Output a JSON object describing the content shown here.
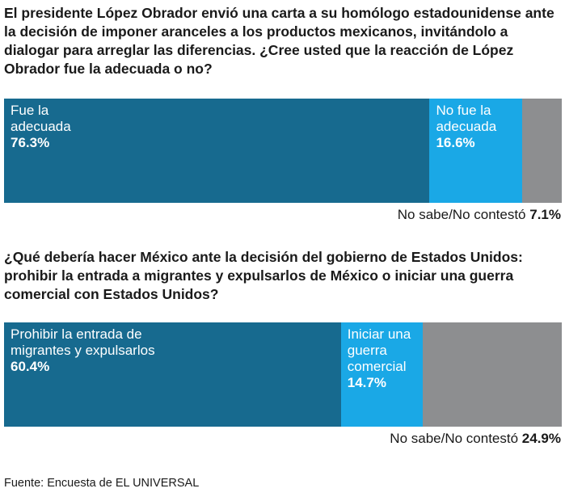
{
  "chart_data": [
    {
      "type": "stacked_bar",
      "title": "El presidente López Obrador envió una carta a su homólogo estadounidense ante la decisión de imponer aranceles a los productos mexicanos, invitándolo a dialogar para arreglar las diferencias. ¿Cree usted que la reacción de López Obrador fue la adecuada o no?",
      "categories": [
        "Fue la adecuada",
        "No fue la adecuada",
        "No sabe/No contestó"
      ],
      "values": [
        76.3,
        16.6,
        7.1
      ],
      "value_labels": [
        "76.3%",
        "16.6%",
        "7.1%"
      ],
      "colors": [
        "#176a8f",
        "#1aa8e6",
        "#8d8e90"
      ]
    },
    {
      "type": "stacked_bar",
      "title": "¿Qué debería hacer México ante la decisión del gobierno de Estados Unidos: prohibir la entrada a migrantes y expulsarlos de México o iniciar una guerra comercial con Estados Unidos?",
      "categories": [
        "Prohibir la entrada de migrantes y expulsarlos",
        "Iniciar una guerra comercial",
        "No sabe/No contestó"
      ],
      "values": [
        60.4,
        14.7,
        24.9
      ],
      "value_labels": [
        "60.4%",
        "14.7%",
        "24.9%"
      ],
      "colors": [
        "#176a8f",
        "#1aa8e6",
        "#8d8e90"
      ]
    }
  ],
  "source": "Fuente: Encuesta de EL UNIVERSAL"
}
